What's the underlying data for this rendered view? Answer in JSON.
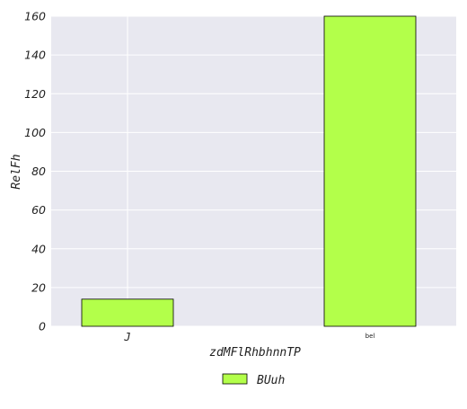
{
  "chart_data": {
    "type": "bar",
    "categories": [
      "J",
      "bel"
    ],
    "series": [
      {
        "name": "BUuh",
        "values": [
          14,
          160
        ]
      }
    ],
    "xlabel": "zdMFlRhbhnnTP",
    "ylabel": "RelFh",
    "ylim": [
      0,
      160
    ],
    "yticks": [
      0,
      20,
      40,
      60,
      80,
      100,
      120,
      140,
      160
    ],
    "grid": true,
    "legend_position": "bottom-center",
    "colors": {
      "bar_fill": "#b3ff4a",
      "bar_edge": "#000000",
      "plot_background": "#e8e8f0",
      "grid": "#ffffff"
    }
  }
}
